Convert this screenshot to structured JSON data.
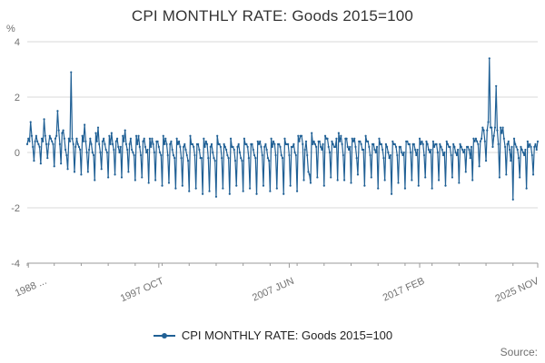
{
  "page": {
    "title": "CPI MONTHLY RATE: Goods 2015=100",
    "y_axis_unit": "%",
    "legend_label": "CPI MONTHLY RATE: Goods 2015=100",
    "source_label": "Source:"
  },
  "chart_data": {
    "type": "line",
    "title": "CPI MONTHLY RATE: Goods 2015=100",
    "xlabel": "",
    "ylabel": "%",
    "ylim": [
      -4,
      4
    ],
    "y_ticks": [
      -4,
      -2,
      0,
      2,
      4
    ],
    "x_tick_labels": [
      "1988 ...",
      "1997 OCT",
      "2007 JUN",
      "2017 FEB",
      "2025 NOV"
    ],
    "x_tick_indices": [
      1,
      117,
      233,
      349,
      454
    ],
    "x_start": "1988 JAN",
    "x_end": "2025 NOV",
    "frequency": "monthly",
    "grid": "horizontal",
    "legend_position": "bottom",
    "line_color": "#206095",
    "axis_color": "#999999",
    "gridline_color": "#d9d9d9",
    "tick_label_color": "#707070",
    "series": [
      {
        "name": "CPI MONTHLY RATE: Goods 2015=100",
        "values": [
          0.3,
          0.5,
          0.4,
          1.1,
          0.6,
          0.2,
          -0.3,
          0.4,
          0.6,
          0.4,
          0.3,
          0.2,
          -0.4,
          0.5,
          0.4,
          1.2,
          0.6,
          0.3,
          -0.2,
          0.3,
          0.6,
          0.5,
          0.4,
          0.3,
          -0.5,
          0.5,
          0.6,
          1.5,
          0.8,
          0.3,
          -0.4,
          0.7,
          0.8,
          0.5,
          0.1,
          -0.1,
          -0.6,
          0.5,
          0.4,
          2.9,
          0.5,
          0.3,
          -0.7,
          0.2,
          0.5,
          0.3,
          0.2,
          0.1,
          -0.8,
          0.6,
          0.4,
          1.0,
          0.4,
          0.0,
          -0.7,
          0.1,
          0.5,
          0.3,
          0.0,
          -0.1,
          -1.0,
          0.7,
          0.4,
          0.9,
          0.3,
          0.0,
          -0.6,
          0.4,
          0.5,
          0.3,
          0.1,
          0.0,
          -0.9,
          0.6,
          0.3,
          0.7,
          0.3,
          0.1,
          -0.8,
          0.4,
          0.5,
          0.2,
          0.0,
          0.2,
          -0.9,
          0.6,
          0.4,
          0.8,
          0.3,
          0.1,
          -0.7,
          0.3,
          0.5,
          0.1,
          0.0,
          -0.1,
          -1.0,
          0.6,
          0.3,
          0.6,
          0.2,
          -0.1,
          -0.9,
          0.4,
          0.5,
          0.2,
          0.0,
          0.1,
          -1.1,
          0.5,
          0.2,
          0.5,
          0.3,
          0.0,
          -1.0,
          0.4,
          0.4,
          0.2,
          0.0,
          -0.1,
          -1.2,
          0.6,
          0.3,
          0.5,
          0.3,
          -0.1,
          -1.1,
          0.3,
          0.4,
          0.1,
          -0.1,
          -0.2,
          -1.3,
          0.5,
          0.3,
          0.4,
          0.2,
          -0.2,
          -1.2,
          0.2,
          0.3,
          0.1,
          -0.1,
          -0.3,
          -1.4,
          0.6,
          0.3,
          0.3,
          0.2,
          -0.1,
          -1.3,
          0.3,
          0.3,
          0.1,
          -0.2,
          -0.2,
          -1.5,
          0.5,
          0.2,
          0.4,
          0.3,
          -0.2,
          -1.4,
          0.2,
          0.3,
          0.0,
          -0.2,
          -0.3,
          -1.6,
          0.6,
          0.3,
          0.3,
          0.2,
          -0.2,
          -1.3,
          0.3,
          0.2,
          0.1,
          -0.1,
          -0.2,
          -1.5,
          0.5,
          0.2,
          0.2,
          0.1,
          -0.3,
          -1.2,
          0.2,
          0.3,
          0.0,
          -0.2,
          -0.3,
          -1.4,
          0.5,
          0.3,
          0.3,
          0.2,
          -0.2,
          -1.3,
          0.3,
          0.3,
          0.1,
          -0.1,
          -0.2,
          -1.5,
          0.4,
          0.3,
          0.4,
          0.2,
          -0.1,
          -1.2,
          0.2,
          0.3,
          0.1,
          -0.2,
          -0.3,
          -1.4,
          0.5,
          0.2,
          0.4,
          0.3,
          -0.1,
          -1.3,
          0.3,
          0.3,
          0.2,
          -0.1,
          -0.2,
          -1.5,
          0.5,
          0.3,
          0.3,
          0.3,
          -0.1,
          -1.2,
          0.2,
          0.2,
          0.3,
          0.0,
          -0.1,
          -1.4,
          0.6,
          0.4,
          0.6,
          0.6,
          0.3,
          -1.0,
          0.1,
          0.4,
          -0.1,
          -0.7,
          -0.8,
          -1.1,
          0.7,
          0.3,
          0.4,
          0.3,
          0.2,
          -0.9,
          0.4,
          0.4,
          0.2,
          0.1,
          0.3,
          -1.2,
          0.6,
          0.5,
          0.5,
          0.2,
          0.0,
          -0.9,
          0.4,
          0.3,
          0.2,
          0.2,
          0.5,
          -1.0,
          0.7,
          0.4,
          0.6,
          0.3,
          -0.1,
          -1.0,
          0.5,
          0.5,
          0.2,
          0.1,
          0.2,
          -1.1,
          0.5,
          0.4,
          0.5,
          0.2,
          -0.2,
          -0.8,
          0.4,
          0.4,
          0.3,
          0.1,
          0.1,
          -1.2,
          0.6,
          0.4,
          0.4,
          0.2,
          -0.1,
          -0.9,
          0.3,
          0.3,
          0.1,
          0.0,
          0.2,
          -1.3,
          0.5,
          0.3,
          0.3,
          0.1,
          -0.2,
          -1.0,
          0.3,
          0.2,
          0.0,
          -0.2,
          -0.1,
          -1.5,
          0.4,
          0.3,
          0.3,
          0.2,
          -0.1,
          -1.1,
          0.2,
          0.2,
          0.0,
          -0.1,
          0.0,
          -1.3,
          0.4,
          0.4,
          0.3,
          0.3,
          0.0,
          -1.0,
          0.3,
          0.3,
          0.1,
          -0.1,
          0.1,
          -1.2,
          0.5,
          0.3,
          0.4,
          0.3,
          -0.1,
          -0.9,
          0.4,
          0.3,
          0.1,
          0.0,
          0.1,
          -1.3,
          0.4,
          0.2,
          0.3,
          0.3,
          0.0,
          -1.0,
          0.3,
          0.2,
          0.1,
          -0.1,
          0.0,
          -1.2,
          0.4,
          0.3,
          0.2,
          0.2,
          -0.1,
          -0.9,
          0.3,
          0.2,
          0.0,
          -0.1,
          0.1,
          -1.1,
          0.3,
          0.2,
          0.1,
          0.0,
          0.1,
          -0.7,
          0.2,
          0.2,
          0.1,
          -0.2,
          0.2,
          -1.0,
          0.5,
          0.4,
          0.5,
          0.4,
          0.3,
          -0.5,
          0.4,
          0.5,
          0.9,
          0.8,
          0.4,
          -0.3,
          0.8,
          1.1,
          3.4,
          0.9,
          0.9,
          0.2,
          0.6,
          0.9,
          2.4,
          0.8,
          0.3,
          -0.9,
          0.9,
          0.7,
          0.9,
          0.5,
          0.2,
          -0.8,
          0.3,
          0.4,
          0.1,
          -0.3,
          0.2,
          -1.7,
          0.5,
          0.3,
          0.2,
          0.1,
          -0.2,
          -0.9,
          0.2,
          0.1,
          0.0,
          -0.1,
          0.1,
          -1.3,
          0.4,
          0.2,
          0.3,
          0.2,
          -0.1,
          -0.8,
          0.2,
          0.3,
          0.1,
          0.4
        ]
      }
    ]
  }
}
